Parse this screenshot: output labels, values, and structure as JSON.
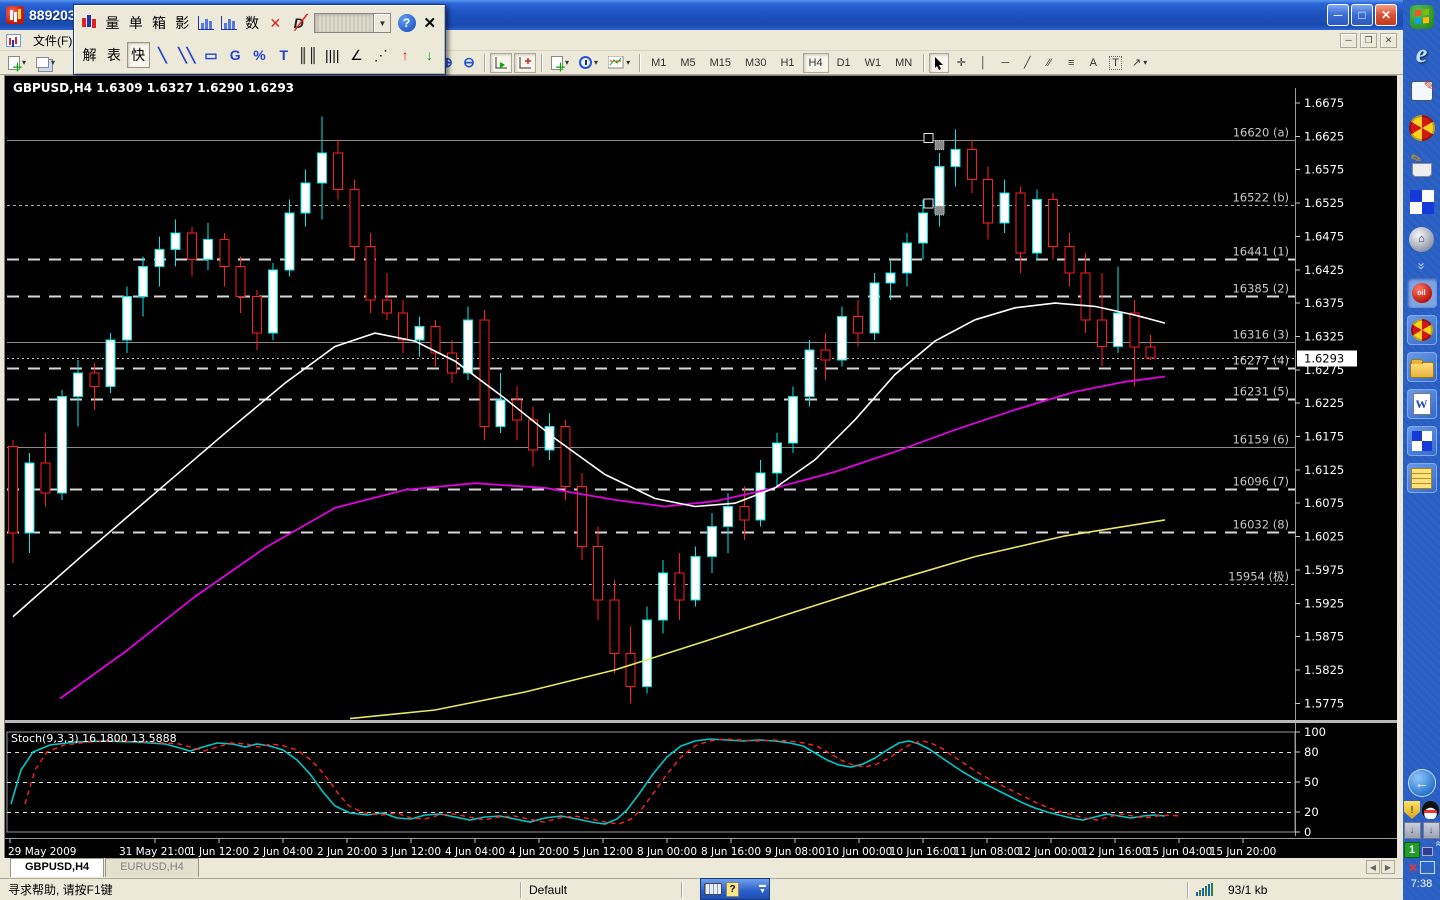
{
  "window": {
    "title": "889203"
  },
  "menu": {
    "file": "文件(F)"
  },
  "palette": {
    "row1": {
      "liang": "量",
      "dan": "单",
      "xiang": "箱",
      "ying": "影",
      "shu": "数"
    },
    "row2": {
      "jie": "解",
      "biao": "表",
      "kuai": "快"
    }
  },
  "toolbar": {
    "timeframes": {
      "m1": "M1",
      "m5": "M5",
      "m15": "M15",
      "m30": "M30",
      "h1": "H1",
      "h4": "H4",
      "d1": "D1",
      "w1": "W1",
      "mn": "MN"
    },
    "letters": {
      "a": "A",
      "t": "T",
      "fibo": "≡",
      "arrow_tool": "↗"
    }
  },
  "tabs": {
    "t1": "GBPUSD,H4",
    "t2": "EURUSD,H4"
  },
  "statusbar": {
    "help": "寻求帮助, 请按F1键",
    "profile": "Default",
    "traffic": "93/1 kb"
  },
  "desktop": {
    "clock": "7:38"
  },
  "chart_data": {
    "type": "candlestick",
    "symbol": "GBPUSD",
    "timeframe": "H4",
    "ohlc_header": "GBPUSD,H4  1.6309 1.6327 1.6290 1.6293",
    "current": {
      "open": 1.6309,
      "high": 1.6327,
      "low": 1.629,
      "close": 1.6293
    },
    "bg": "#000000",
    "bull_color": "#00E8E8",
    "bear_color": "#FF1C1C",
    "price_top": 1.6675,
    "price_step": 0.005,
    "y_ticks": [
      "1.6675",
      "1.6625",
      "1.6575",
      "1.6525",
      "1.6475",
      "1.6425",
      "1.6375",
      "1.6325",
      "1.6275",
      "1.6225",
      "1.6175",
      "1.6125",
      "1.6075",
      "1.6025",
      "1.5975",
      "1.5925",
      "1.5875",
      "1.5825",
      "1.5775"
    ],
    "x_labels": [
      "29 May 2009",
      "31 May 21:00",
      "1 Jun 12:00",
      "2 Jun 04:00",
      "2 Jun 20:00",
      "3 Jun 12:00",
      "4 Jun 04:00",
      "4 Jun 20:00",
      "5 Jun 12:00",
      "8 Jun 00:00",
      "8 Jun 16:00",
      "9 Jun 08:00",
      "10 Jun 00:00",
      "10 Jun 16:00",
      "11 Jun 08:00",
      "12 Jun 00:00",
      "12 Jun 16:00",
      "15 Jun 04:00",
      "15 Jun 20:00"
    ],
    "current_price_line": 1.6293,
    "levels": [
      {
        "price": 1.662,
        "label": "16620 (a)",
        "style": "solid"
      },
      {
        "price": 1.6522,
        "label": "16522 (b)",
        "style": "fine"
      },
      {
        "price": 1.6441,
        "label": "16441 (1)",
        "style": "dash"
      },
      {
        "price": 1.6385,
        "label": "16385 (2)",
        "style": "dash"
      },
      {
        "price": 1.6316,
        "label": "16316 (3)",
        "style": "solid"
      },
      {
        "price": 1.6277,
        "label": "16277 (4)",
        "style": "dash"
      },
      {
        "price": 1.6231,
        "label": "16231 (5)",
        "style": "dash"
      },
      {
        "price": 1.6159,
        "label": "16159 (6)",
        "style": "solid"
      },
      {
        "price": 1.6096,
        "label": "16096 (7)",
        "style": "dash"
      },
      {
        "price": 1.6032,
        "label": "16032 (8)",
        "style": "dash"
      },
      {
        "price": 1.5954,
        "label": "15954 (极)",
        "style": "fine"
      }
    ],
    "selected_levels": [
      1.662,
      1.6522
    ],
    "candles": [
      [
        1.616,
        1.617,
        1.5985,
        1.603
      ],
      [
        1.603,
        1.615,
        1.6,
        1.6135
      ],
      [
        1.6135,
        1.618,
        1.607,
        1.609
      ],
      [
        1.609,
        1.6245,
        1.608,
        1.6235
      ],
      [
        1.6235,
        1.629,
        1.619,
        1.627
      ],
      [
        1.627,
        1.6285,
        1.6215,
        1.625
      ],
      [
        1.625,
        1.633,
        1.624,
        1.632
      ],
      [
        1.632,
        1.64,
        1.63,
        1.6385
      ],
      [
        1.6385,
        1.6445,
        1.6355,
        1.643
      ],
      [
        1.643,
        1.6475,
        1.64,
        1.6455
      ],
      [
        1.6455,
        1.65,
        1.643,
        1.648
      ],
      [
        1.648,
        1.649,
        1.6415,
        1.644
      ],
      [
        1.644,
        1.6495,
        1.6425,
        1.647
      ],
      [
        1.647,
        1.648,
        1.64,
        1.643
      ],
      [
        1.643,
        1.6445,
        1.636,
        1.6385
      ],
      [
        1.6385,
        1.6395,
        1.6305,
        1.633
      ],
      [
        1.633,
        1.6435,
        1.632,
        1.6425
      ],
      [
        1.6425,
        1.653,
        1.6415,
        1.651
      ],
      [
        1.651,
        1.6575,
        1.649,
        1.6555
      ],
      [
        1.6555,
        1.6655,
        1.65,
        1.66
      ],
      [
        1.66,
        1.662,
        1.653,
        1.6545
      ],
      [
        1.6545,
        1.656,
        1.644,
        1.646
      ],
      [
        1.646,
        1.648,
        1.636,
        1.638
      ],
      [
        1.638,
        1.642,
        1.635,
        1.636
      ],
      [
        1.636,
        1.638,
        1.63,
        1.632
      ],
      [
        1.632,
        1.6355,
        1.6295,
        1.634
      ],
      [
        1.634,
        1.635,
        1.628,
        1.63
      ],
      [
        1.63,
        1.632,
        1.6255,
        1.627
      ],
      [
        1.627,
        1.637,
        1.626,
        1.635
      ],
      [
        1.635,
        1.6365,
        1.617,
        1.619
      ],
      [
        1.619,
        1.627,
        1.618,
        1.623
      ],
      [
        1.623,
        1.625,
        1.617,
        1.62
      ],
      [
        1.62,
        1.622,
        1.613,
        1.6155
      ],
      [
        1.6155,
        1.621,
        1.614,
        1.619
      ],
      [
        1.619,
        1.62,
        1.608,
        1.61
      ],
      [
        1.61,
        1.612,
        1.599,
        1.601
      ],
      [
        1.601,
        1.604,
        1.59,
        1.593
      ],
      [
        1.593,
        1.596,
        1.582,
        1.585
      ],
      [
        1.585,
        1.589,
        1.5775,
        1.58
      ],
      [
        1.58,
        1.592,
        1.579,
        1.59
      ],
      [
        1.59,
        1.599,
        1.588,
        1.597
      ],
      [
        1.597,
        1.6,
        1.59,
        1.593
      ],
      [
        1.593,
        1.601,
        1.592,
        1.5995
      ],
      [
        1.5995,
        1.606,
        1.597,
        1.604
      ],
      [
        1.604,
        1.609,
        1.6,
        1.607
      ],
      [
        1.607,
        1.61,
        1.602,
        1.605
      ],
      [
        1.605,
        1.614,
        1.604,
        1.612
      ],
      [
        1.612,
        1.618,
        1.61,
        1.6165
      ],
      [
        1.6165,
        1.625,
        1.615,
        1.6235
      ],
      [
        1.6235,
        1.632,
        1.622,
        1.6305
      ],
      [
        1.6305,
        1.633,
        1.626,
        1.629
      ],
      [
        1.629,
        1.637,
        1.628,
        1.6355
      ],
      [
        1.6355,
        1.638,
        1.631,
        1.633
      ],
      [
        1.633,
        1.642,
        1.632,
        1.6405
      ],
      [
        1.6405,
        1.644,
        1.638,
        1.642
      ],
      [
        1.642,
        1.648,
        1.64,
        1.6465
      ],
      [
        1.6465,
        1.653,
        1.644,
        1.651
      ],
      [
        1.651,
        1.66,
        1.649,
        1.658
      ],
      [
        1.658,
        1.6635,
        1.655,
        1.6605
      ],
      [
        1.6605,
        1.662,
        1.654,
        1.656
      ],
      [
        1.656,
        1.658,
        1.647,
        1.6495
      ],
      [
        1.6495,
        1.656,
        1.648,
        1.654
      ],
      [
        1.654,
        1.655,
        1.642,
        1.645
      ],
      [
        1.645,
        1.6545,
        1.644,
        1.653
      ],
      [
        1.653,
        1.654,
        1.644,
        1.646
      ],
      [
        1.646,
        1.648,
        1.64,
        1.642
      ],
      [
        1.642,
        1.645,
        1.633,
        1.635
      ],
      [
        1.635,
        1.642,
        1.628,
        1.631
      ],
      [
        1.631,
        1.643,
        1.63,
        1.636
      ],
      [
        1.636,
        1.638,
        1.625,
        1.6309
      ],
      [
        1.6309,
        1.6327,
        1.629,
        1.6293
      ]
    ],
    "ma_series": [
      {
        "name": "ma-slow-yellow",
        "color": "#E8E860",
        "width": 1.6,
        "points": [
          [
            345,
            1.5752
          ],
          [
            430,
            1.5765
          ],
          [
            520,
            1.5792
          ],
          [
            610,
            1.5825
          ],
          [
            700,
            1.5868
          ],
          [
            790,
            1.5912
          ],
          [
            880,
            1.5955
          ],
          [
            970,
            1.5995
          ],
          [
            1060,
            1.6026
          ],
          [
            1160,
            1.605
          ]
        ]
      },
      {
        "name": "ma-mid-magenta",
        "color": "#E000E0",
        "width": 1.8,
        "points": [
          [
            55,
            1.5782
          ],
          [
            120,
            1.5852
          ],
          [
            190,
            1.5935
          ],
          [
            260,
            1.6008
          ],
          [
            330,
            1.6068
          ],
          [
            400,
            1.6095
          ],
          [
            470,
            1.6105
          ],
          [
            540,
            1.6098
          ],
          [
            610,
            1.608
          ],
          [
            660,
            1.607
          ],
          [
            710,
            1.6078
          ],
          [
            770,
            1.6098
          ],
          [
            830,
            1.6122
          ],
          [
            890,
            1.6152
          ],
          [
            950,
            1.6185
          ],
          [
            1010,
            1.6215
          ],
          [
            1070,
            1.6242
          ],
          [
            1120,
            1.6257
          ],
          [
            1160,
            1.6265
          ]
        ]
      },
      {
        "name": "ma-fast-white",
        "color": "#FFFFFF",
        "width": 1.6,
        "points": [
          [
            8,
            1.5905
          ],
          [
            80,
            1.6
          ],
          [
            150,
            1.609
          ],
          [
            220,
            1.618
          ],
          [
            280,
            1.6255
          ],
          [
            330,
            1.631
          ],
          [
            370,
            1.633
          ],
          [
            410,
            1.6318
          ],
          [
            450,
            1.6288
          ],
          [
            500,
            1.6232
          ],
          [
            550,
            1.6172
          ],
          [
            600,
            1.6118
          ],
          [
            650,
            1.6082
          ],
          [
            690,
            1.607
          ],
          [
            730,
            1.6075
          ],
          [
            770,
            1.6098
          ],
          [
            810,
            1.614
          ],
          [
            850,
            1.62
          ],
          [
            890,
            1.6268
          ],
          [
            930,
            1.6318
          ],
          [
            970,
            1.635
          ],
          [
            1010,
            1.6368
          ],
          [
            1050,
            1.6375
          ],
          [
            1090,
            1.637
          ],
          [
            1130,
            1.6357
          ],
          [
            1160,
            1.6345
          ]
        ]
      }
    ],
    "stoch": {
      "label": "Stoch(9,3,3) 16.1800 13.5888",
      "main_value": 16.18,
      "signal_value": 13.5888,
      "ticks": [
        "100",
        "80",
        "50",
        "20",
        "0"
      ],
      "dashed_levels": [
        80,
        50,
        20
      ],
      "main_color": "#00C8C8",
      "signal_color": "#FF2020",
      "signal_shift": 14,
      "points": [
        [
          6,
          28
        ],
        [
          16,
          62
        ],
        [
          28,
          80
        ],
        [
          45,
          87
        ],
        [
          70,
          90
        ],
        [
          100,
          91
        ],
        [
          130,
          90
        ],
        [
          160,
          88
        ],
        [
          175,
          84
        ],
        [
          185,
          81
        ],
        [
          198,
          85
        ],
        [
          212,
          89
        ],
        [
          228,
          88
        ],
        [
          240,
          85
        ],
        [
          252,
          88
        ],
        [
          265,
          86
        ],
        [
          278,
          82
        ],
        [
          292,
          72
        ],
        [
          305,
          58
        ],
        [
          318,
          40
        ],
        [
          330,
          26
        ],
        [
          345,
          19
        ],
        [
          362,
          17
        ],
        [
          378,
          19
        ],
        [
          392,
          14
        ],
        [
          406,
          13
        ],
        [
          420,
          17
        ],
        [
          435,
          18
        ],
        [
          450,
          15
        ],
        [
          465,
          12
        ],
        [
          480,
          15
        ],
        [
          495,
          16
        ],
        [
          510,
          13
        ],
        [
          525,
          10
        ],
        [
          540,
          14
        ],
        [
          556,
          16
        ],
        [
          572,
          13
        ],
        [
          586,
          10
        ],
        [
          600,
          8
        ],
        [
          612,
          13
        ],
        [
          622,
          22
        ],
        [
          634,
          38
        ],
        [
          648,
          58
        ],
        [
          662,
          75
        ],
        [
          676,
          86
        ],
        [
          690,
          91
        ],
        [
          705,
          93
        ],
        [
          722,
          92
        ],
        [
          738,
          91
        ],
        [
          754,
          92
        ],
        [
          770,
          91
        ],
        [
          785,
          89
        ],
        [
          798,
          86
        ],
        [
          810,
          79
        ],
        [
          822,
          72
        ],
        [
          834,
          67
        ],
        [
          846,
          65
        ],
        [
          858,
          68
        ],
        [
          870,
          74
        ],
        [
          882,
          82
        ],
        [
          894,
          89
        ],
        [
          904,
          91
        ],
        [
          914,
          88
        ],
        [
          924,
          83
        ],
        [
          934,
          76
        ],
        [
          946,
          68
        ],
        [
          958,
          60
        ],
        [
          970,
          53
        ],
        [
          982,
          47
        ],
        [
          994,
          41
        ],
        [
          1006,
          35
        ],
        [
          1018,
          29
        ],
        [
          1030,
          24
        ],
        [
          1042,
          20
        ],
        [
          1054,
          17
        ],
        [
          1066,
          14
        ],
        [
          1078,
          12
        ],
        [
          1090,
          15
        ],
        [
          1102,
          18
        ],
        [
          1114,
          16
        ],
        [
          1126,
          14
        ],
        [
          1138,
          16
        ],
        [
          1150,
          17
        ],
        [
          1160,
          16
        ]
      ]
    }
  }
}
